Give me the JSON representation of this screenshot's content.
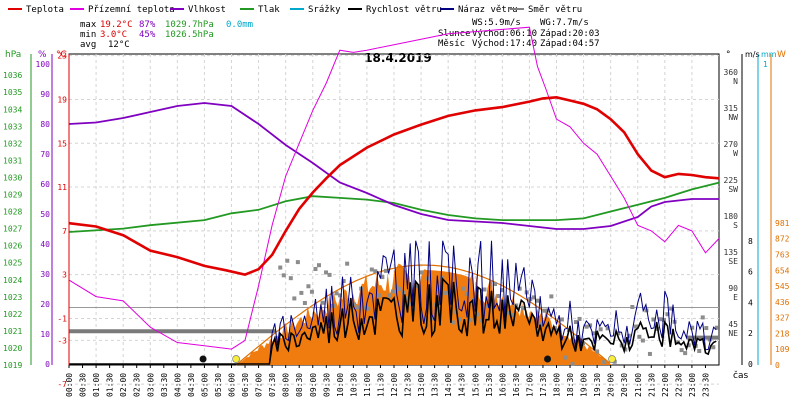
{
  "chart_data": {
    "type": "line",
    "title": "18.4.2019",
    "legend": [
      {
        "id": "teplota",
        "label": "Teplota",
        "color": "#e00000"
      },
      {
        "id": "prizemni",
        "label": "Přízemní teplota",
        "color": "#e000e0"
      },
      {
        "id": "vlhkost",
        "label": "Vlhkost",
        "color": "#8000c0"
      },
      {
        "id": "tlak",
        "label": "Tlak",
        "color": "#229922"
      },
      {
        "id": "srazky",
        "label": "Srážky",
        "color": "#00a8cc"
      },
      {
        "id": "rychlost",
        "label": "Rychlost větru",
        "color": "#000000"
      },
      {
        "id": "naraz",
        "label": "Náraz větru",
        "color": "#000080"
      },
      {
        "id": "smer",
        "label": "Směr větru",
        "color": "#808080"
      }
    ],
    "stats": {
      "max": {
        "label": "max",
        "temp": "19.2°C",
        "hum": "87%",
        "press": "1029.7hPa",
        "rain": "0.0mm"
      },
      "min": {
        "label": "min",
        "temp": "3.0°C",
        "hum": "45%",
        "press": "1026.5hPa"
      },
      "avg": {
        "label": "avg",
        "temp": "12°C"
      }
    },
    "info": {
      "ws": "WS:5.9m/s",
      "wg": "WG:7.7m/s",
      "sun_label": "Slunce",
      "sunrise": "Východ:06:10",
      "sunset": "Západ:20:03",
      "moon_label": "Měsíc",
      "moonrise": "Východ:17:40",
      "moonset": "Západ:04:57"
    },
    "axes": {
      "hpa": {
        "label": "hPa",
        "ticks": [
          "1036",
          "1035",
          "1034",
          "1033",
          "1032",
          "1031",
          "1030",
          "1029",
          "1028",
          "1027",
          "1026",
          "1025",
          "1024",
          "1023",
          "1022",
          "1021",
          "1020",
          "1019"
        ],
        "color": "#229922"
      },
      "percent": {
        "label": "%",
        "ticks": [
          "100",
          "90",
          "80",
          "70",
          "60",
          "50",
          "40",
          "30",
          "20",
          "10",
          "0"
        ],
        "color": "#8000c0"
      },
      "celsius": {
        "label": "°C",
        "ticks": [
          "23",
          "19",
          "15",
          "11",
          "7",
          "3",
          "-1",
          "-3",
          "-7"
        ],
        "color": "#e00000"
      },
      "direction": {
        "label": "°",
        "ticks": [
          {
            "deg": "360",
            "dir": "N"
          },
          {
            "deg": "315",
            "dir": "NW"
          },
          {
            "deg": "270",
            "dir": "W"
          },
          {
            "deg": "225",
            "dir": "SW"
          },
          {
            "deg": "180",
            "dir": "S"
          },
          {
            "deg": "135",
            "dir": "SE"
          },
          {
            "deg": "90",
            "dir": "E"
          },
          {
            "deg": "45",
            "dir": "NE"
          }
        ]
      },
      "wind": {
        "label": "m/s",
        "ticks": [
          "8",
          "6",
          "4",
          "2",
          "0"
        ]
      },
      "rain": {
        "label": "mm",
        "ticks": [
          "1"
        ]
      },
      "solar": {
        "label": "W",
        "ticks": [
          "981",
          "872",
          "763",
          "654",
          "545",
          "436",
          "327",
          "218",
          "109",
          "0"
        ],
        "color": "#e07000"
      },
      "time": {
        "label": "čas",
        "ticks": [
          "00:00",
          "00:30",
          "01:00",
          "01:30",
          "02:00",
          "02:30",
          "03:00",
          "03:30",
          "04:00",
          "04:30",
          "05:00",
          "05:30",
          "06:00",
          "06:30",
          "07:00",
          "07:30",
          "08:00",
          "08:30",
          "09:00",
          "09:30",
          "10:00",
          "10:30",
          "11:00",
          "11:30",
          "12:00",
          "12:30",
          "13:00",
          "13:30",
          "14:00",
          "14:30",
          "15:00",
          "15:30",
          "16:00",
          "16:30",
          "17:00",
          "17:30",
          "18:00",
          "18:30",
          "19:00",
          "19:30",
          "20:00",
          "20:30",
          "21:00",
          "21:30",
          "22:00",
          "22:30",
          "23:00",
          "23:30"
        ]
      }
    },
    "series": {
      "teplota_c": [
        [
          0,
          7.7
        ],
        [
          1,
          7.4
        ],
        [
          2,
          6.6
        ],
        [
          3,
          5.2
        ],
        [
          4,
          4.6
        ],
        [
          5,
          3.8
        ],
        [
          5.8,
          3.4
        ],
        [
          6.5,
          3.0
        ],
        [
          7,
          3.5
        ],
        [
          7.5,
          4.8
        ],
        [
          8,
          7.0
        ],
        [
          8.5,
          9.0
        ],
        [
          9,
          10.5
        ],
        [
          9.5,
          11.8
        ],
        [
          10,
          13.0
        ],
        [
          11,
          14.6
        ],
        [
          12,
          15.8
        ],
        [
          13,
          16.7
        ],
        [
          14,
          17.5
        ],
        [
          15,
          18.0
        ],
        [
          16,
          18.3
        ],
        [
          17,
          18.8
        ],
        [
          17.5,
          19.1
        ],
        [
          18,
          19.2
        ],
        [
          18.5,
          18.9
        ],
        [
          19,
          18.6
        ],
        [
          19.5,
          18.1
        ],
        [
          20,
          17.2
        ],
        [
          20.5,
          16.0
        ],
        [
          21,
          14.0
        ],
        [
          21.5,
          12.5
        ],
        [
          22,
          11.9
        ],
        [
          22.5,
          12.2
        ],
        [
          23,
          12.1
        ],
        [
          23.5,
          11.9
        ],
        [
          24,
          11.8
        ]
      ],
      "prizemni_c": [
        [
          0,
          2.5
        ],
        [
          1,
          1.0
        ],
        [
          2,
          0.6
        ],
        [
          3,
          -1.8
        ],
        [
          4,
          -3.2
        ],
        [
          5,
          -3.5
        ],
        [
          6,
          -3.8
        ],
        [
          6.5,
          -3.0
        ],
        [
          7,
          2.0
        ],
        [
          7.5,
          7.5
        ],
        [
          8,
          12.0
        ],
        [
          8.5,
          15.0
        ],
        [
          9,
          18.0
        ],
        [
          9.5,
          20.5
        ],
        [
          10,
          23.5
        ],
        [
          10.5,
          23.3
        ],
        [
          11,
          23.5
        ],
        [
          12,
          24.0
        ],
        [
          13,
          24.5
        ],
        [
          14,
          25.0
        ],
        [
          15,
          25.2
        ],
        [
          16,
          25.4
        ],
        [
          17,
          25.6
        ],
        [
          17.3,
          22.0
        ],
        [
          17.6,
          20.0
        ],
        [
          18,
          17.2
        ],
        [
          18.5,
          16.5
        ],
        [
          19,
          15.0
        ],
        [
          19.5,
          14.0
        ],
        [
          20,
          12.0
        ],
        [
          20.5,
          10.0
        ],
        [
          21,
          7.5
        ],
        [
          21.5,
          7.0
        ],
        [
          22,
          6.0
        ],
        [
          22.5,
          7.5
        ],
        [
          23,
          7.0
        ],
        [
          23.5,
          5.0
        ],
        [
          24,
          6.3
        ]
      ],
      "vlhkost_pct": [
        [
          0,
          80.0
        ],
        [
          1,
          80.5
        ],
        [
          2,
          82.0
        ],
        [
          3,
          84.0
        ],
        [
          4,
          86.0
        ],
        [
          5,
          87.0
        ],
        [
          6,
          86.0
        ],
        [
          7,
          80.0
        ],
        [
          8,
          73.0
        ],
        [
          9,
          67.0
        ],
        [
          10,
          60.5
        ],
        [
          11,
          57.0
        ],
        [
          12,
          53.0
        ],
        [
          13,
          50.0
        ],
        [
          14,
          48.0
        ],
        [
          15,
          47.5
        ],
        [
          16,
          47.0
        ],
        [
          17,
          46.0
        ],
        [
          18,
          45.0
        ],
        [
          19,
          45.0
        ],
        [
          20,
          46.0
        ],
        [
          21,
          49.0
        ],
        [
          21.5,
          52.5
        ],
        [
          22,
          54.0
        ],
        [
          23,
          55.0
        ],
        [
          24,
          55.0
        ]
      ],
      "tlak_hpa": [
        [
          0,
          1026.8
        ],
        [
          2,
          1027.0
        ],
        [
          3,
          1027.2
        ],
        [
          5,
          1027.5
        ],
        [
          6,
          1027.9
        ],
        [
          7,
          1028.1
        ],
        [
          8,
          1028.6
        ],
        [
          9,
          1028.9
        ],
        [
          10,
          1028.8
        ],
        [
          11,
          1028.7
        ],
        [
          12,
          1028.5
        ],
        [
          13,
          1028.1
        ],
        [
          14,
          1027.8
        ],
        [
          15,
          1027.6
        ],
        [
          16,
          1027.5
        ],
        [
          17,
          1027.5
        ],
        [
          18,
          1027.5
        ],
        [
          19,
          1027.6
        ],
        [
          20,
          1028.0
        ],
        [
          21,
          1028.4
        ],
        [
          22,
          1028.8
        ],
        [
          23,
          1029.3
        ],
        [
          24,
          1029.7
        ]
      ],
      "solar_theoretical_max_wm2": 690
    }
  }
}
